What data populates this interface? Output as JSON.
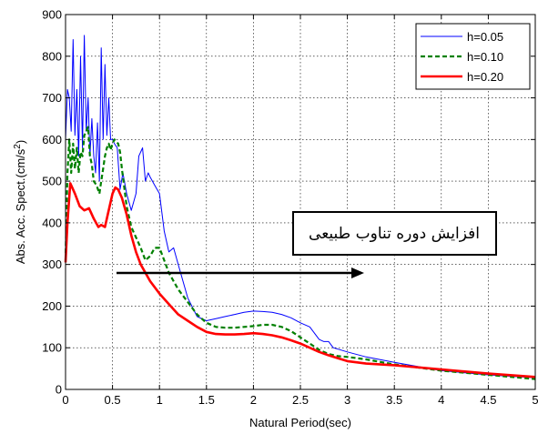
{
  "chart_data": {
    "type": "line",
    "xlabel": "Natural Period(sec)",
    "ylabel": "Abs. Acc. Spect.(cm/s",
    "ylabel_sup": "2",
    "ylabel_close": ")",
    "xlim": [
      0,
      5
    ],
    "ylim": [
      0,
      900
    ],
    "xticks": [
      "0",
      "0.5",
      "1",
      "1.5",
      "2",
      "2.5",
      "3",
      "3.5",
      "4",
      "4.5",
      "5"
    ],
    "yticks": [
      "0",
      "100",
      "200",
      "300",
      "400",
      "500",
      "600",
      "700",
      "800",
      "900"
    ],
    "grid": true,
    "legend_position": "top-right",
    "annotation": "افزایش دوره تناوب طبیعی",
    "series": [
      {
        "name": "h=0.05",
        "color": "#0000ff",
        "style": "solid",
        "x": [
          0.0,
          0.02,
          0.04,
          0.06,
          0.08,
          0.1,
          0.12,
          0.14,
          0.16,
          0.18,
          0.2,
          0.22,
          0.24,
          0.26,
          0.28,
          0.3,
          0.32,
          0.34,
          0.36,
          0.38,
          0.4,
          0.42,
          0.44,
          0.46,
          0.48,
          0.5,
          0.52,
          0.55,
          0.58,
          0.61,
          0.65,
          0.7,
          0.75,
          0.78,
          0.82,
          0.85,
          0.88,
          0.9,
          0.95,
          1.0,
          1.05,
          1.1,
          1.15,
          1.2,
          1.3,
          1.4,
          1.5,
          1.6,
          1.7,
          1.8,
          1.9,
          2.0,
          2.1,
          2.2,
          2.3,
          2.4,
          2.5,
          2.6,
          2.7,
          2.75,
          2.8,
          2.85,
          3.0,
          3.2,
          3.5,
          4.0,
          4.5,
          5.0
        ],
        "y": [
          600,
          720,
          700,
          620,
          840,
          610,
          720,
          560,
          800,
          580,
          850,
          620,
          700,
          560,
          650,
          560,
          520,
          640,
          500,
          820,
          600,
          780,
          610,
          700,
          600,
          600,
          590,
          580,
          480,
          520,
          470,
          430,
          470,
          560,
          580,
          500,
          520,
          510,
          490,
          470,
          380,
          330,
          340,
          300,
          220,
          175,
          165,
          170,
          175,
          180,
          185,
          188,
          187,
          185,
          180,
          172,
          160,
          150,
          120,
          115,
          115,
          100,
          90,
          78,
          65,
          45,
          35,
          28
        ]
      },
      {
        "name": "h=0.10",
        "color": "#008000",
        "style": "dashed",
        "x": [
          0.0,
          0.02,
          0.04,
          0.06,
          0.08,
          0.1,
          0.12,
          0.14,
          0.16,
          0.18,
          0.2,
          0.22,
          0.24,
          0.26,
          0.28,
          0.3,
          0.33,
          0.36,
          0.38,
          0.4,
          0.42,
          0.44,
          0.46,
          0.48,
          0.5,
          0.52,
          0.54,
          0.56,
          0.58,
          0.6,
          0.65,
          0.7,
          0.75,
          0.8,
          0.85,
          0.9,
          0.95,
          1.0,
          1.05,
          1.1,
          1.2,
          1.3,
          1.4,
          1.5,
          1.6,
          1.7,
          1.8,
          1.9,
          2.0,
          2.1,
          2.2,
          2.3,
          2.4,
          2.5,
          2.6,
          2.7,
          2.8,
          2.9,
          3.0,
          3.2,
          3.5,
          4.0,
          4.5,
          5.0
        ],
        "y": [
          310,
          520,
          600,
          520,
          590,
          530,
          580,
          520,
          570,
          560,
          610,
          620,
          630,
          560,
          540,
          500,
          490,
          470,
          500,
          530,
          560,
          580,
          590,
          575,
          590,
          600,
          595,
          590,
          570,
          530,
          440,
          390,
          365,
          340,
          310,
          320,
          340,
          340,
          310,
          280,
          240,
          210,
          180,
          160,
          150,
          148,
          148,
          150,
          152,
          155,
          155,
          150,
          140,
          125,
          110,
          95,
          85,
          80,
          78,
          72,
          60,
          45,
          35,
          25
        ]
      },
      {
        "name": "h=0.20",
        "color": "#ff0000",
        "style": "solid",
        "x": [
          0.0,
          0.02,
          0.05,
          0.08,
          0.1,
          0.15,
          0.2,
          0.25,
          0.3,
          0.35,
          0.38,
          0.42,
          0.45,
          0.5,
          0.53,
          0.56,
          0.6,
          0.65,
          0.7,
          0.75,
          0.8,
          0.9,
          1.0,
          1.1,
          1.2,
          1.3,
          1.4,
          1.5,
          1.6,
          1.7,
          1.8,
          1.9,
          2.0,
          2.1,
          2.2,
          2.3,
          2.4,
          2.5,
          2.6,
          2.7,
          2.8,
          2.9,
          3.0,
          3.2,
          3.5,
          4.0,
          4.5,
          5.0
        ],
        "y": [
          305,
          400,
          495,
          480,
          470,
          440,
          430,
          435,
          410,
          390,
          395,
          390,
          420,
          470,
          485,
          480,
          460,
          420,
          370,
          330,
          300,
          260,
          230,
          205,
          180,
          165,
          150,
          138,
          133,
          132,
          132,
          133,
          135,
          133,
          130,
          125,
          118,
          110,
          100,
          90,
          82,
          75,
          68,
          62,
          58,
          48,
          38,
          30
        ]
      }
    ]
  }
}
